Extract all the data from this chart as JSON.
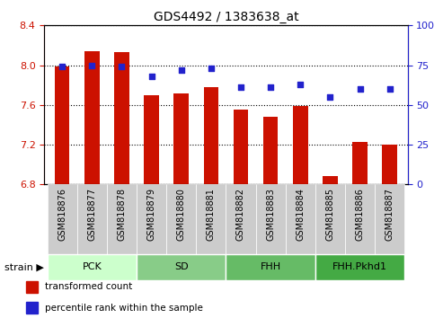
{
  "title": "GDS4492 / 1383638_at",
  "samples": [
    "GSM818876",
    "GSM818877",
    "GSM818878",
    "GSM818879",
    "GSM818880",
    "GSM818881",
    "GSM818882",
    "GSM818883",
    "GSM818884",
    "GSM818885",
    "GSM818886",
    "GSM818887"
  ],
  "transformed_count": [
    7.99,
    8.14,
    8.13,
    7.7,
    7.72,
    7.78,
    7.55,
    7.48,
    7.59,
    6.88,
    7.23,
    7.2
  ],
  "percentile_rank": [
    74,
    75,
    74,
    68,
    72,
    73,
    61,
    61,
    63,
    55,
    60,
    60
  ],
  "ylim_left": [
    6.8,
    8.4
  ],
  "ylim_right": [
    0,
    100
  ],
  "yticks_left": [
    6.8,
    7.2,
    7.6,
    8.0,
    8.4
  ],
  "yticks_right": [
    0,
    25,
    50,
    75,
    100
  ],
  "bar_color": "#cc1100",
  "dot_color": "#2222cc",
  "groups": [
    {
      "label": "PCK",
      "start": 0,
      "end": 2,
      "color": "#ccffcc"
    },
    {
      "label": "SD",
      "start": 3,
      "end": 5,
      "color": "#66cc66"
    },
    {
      "label": "FHH",
      "start": 6,
      "end": 8,
      "color": "#44bb44"
    },
    {
      "label": "FHH.Pkhd1",
      "start": 9,
      "end": 11,
      "color": "#22aa22"
    }
  ],
  "group_row_color": "#aaddaa",
  "tick_bg_color": "#cccccc",
  "ylabel_left_color": "#cc1100",
  "ylabel_right_color": "#2222cc",
  "legend_items": [
    {
      "label": "transformed count",
      "color": "#cc1100"
    },
    {
      "label": "percentile rank within the sample",
      "color": "#2222cc"
    }
  ]
}
